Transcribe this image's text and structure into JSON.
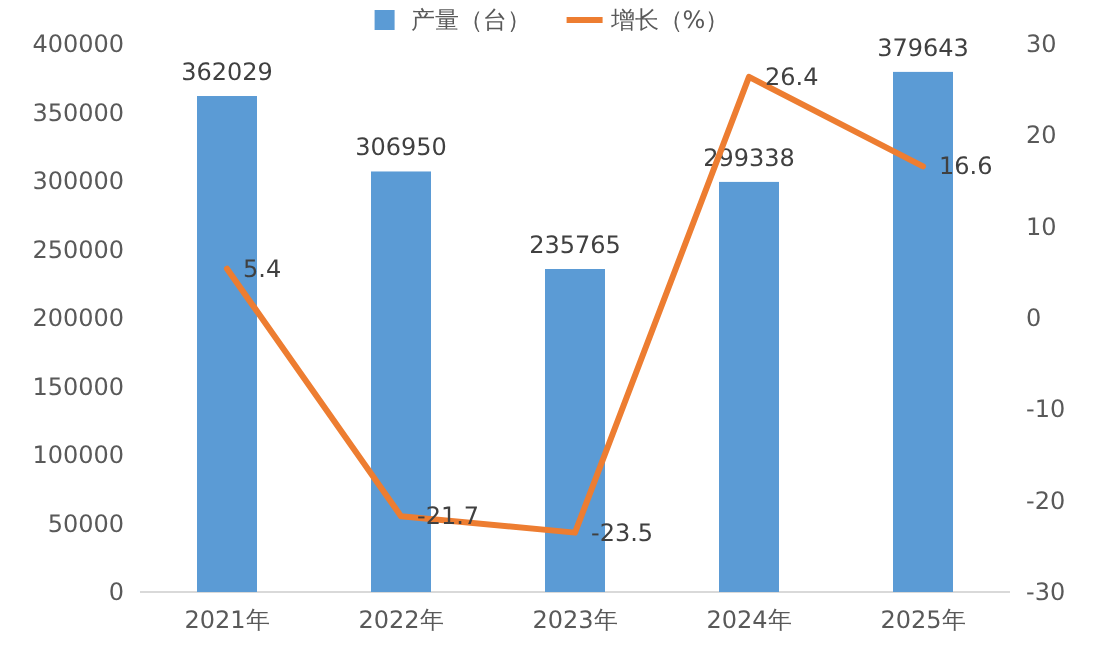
{
  "chart_data": {
    "type": "bar",
    "categories": [
      "2021年",
      "2022年",
      "2023年",
      "2024年",
      "2025年"
    ],
    "series": [
      {
        "name": "产量（台）",
        "color": "#5b9bd5",
        "values": [
          362029,
          306950,
          235765,
          299338,
          379643
        ]
      },
      {
        "name": "增长（%）",
        "type": "line",
        "axis": "y2",
        "color": "#ed7d31",
        "values": [
          5.4,
          -21.7,
          -23.5,
          26.4,
          16.6
        ]
      }
    ],
    "ylim": [
      0,
      400000
    ],
    "yticks": [
      0,
      50000,
      100000,
      150000,
      200000,
      250000,
      300000,
      350000,
      400000
    ],
    "y2lim": [
      -30,
      30
    ],
    "y2ticks": [
      -30,
      -20,
      -10,
      0,
      10,
      20,
      30
    ],
    "data_labels": true,
    "legend": "top",
    "marker": "none",
    "line_style": "solid"
  }
}
